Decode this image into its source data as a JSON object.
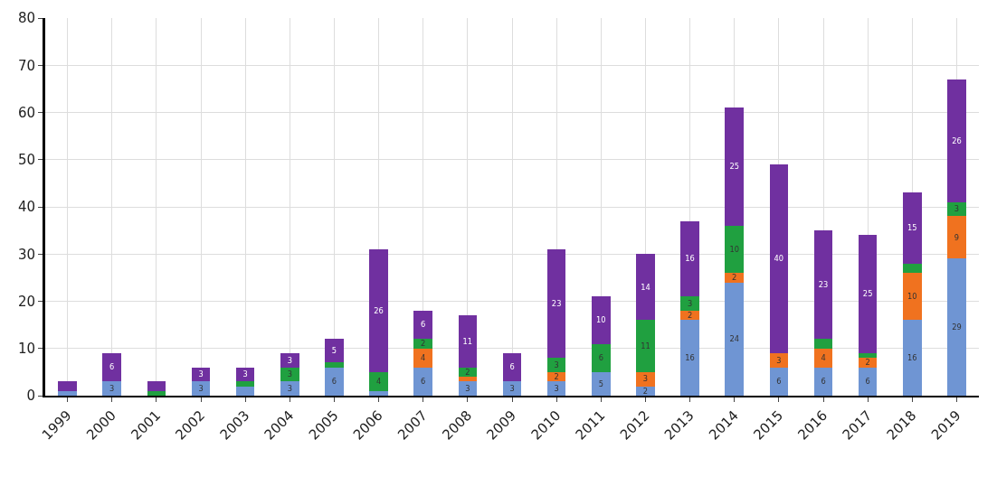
{
  "chart_data": {
    "type": "bar",
    "stacked": true,
    "categories": [
      "1999",
      "2000",
      "2001",
      "2002",
      "2003",
      "2004",
      "2005",
      "2006",
      "2007",
      "2008",
      "2009",
      "2010",
      "2011",
      "2012",
      "2013",
      "2014",
      "2015",
      "2016",
      "2017",
      "2018",
      "2019"
    ],
    "series": [
      {
        "color": "#6f95d3",
        "values": [
          1,
          3,
          0,
          3,
          2,
          3,
          6,
          1,
          6,
          3,
          3,
          3,
          5,
          2,
          16,
          24,
          6,
          6,
          6,
          16,
          29
        ],
        "value_labels": [
          null,
          "3",
          null,
          "3",
          null,
          "3",
          "6",
          null,
          "6",
          "3",
          "3",
          "3",
          "5",
          "2",
          "16",
          "24",
          "6",
          "6",
          "6",
          "16",
          "29"
        ]
      },
      {
        "color": "#f0721f",
        "values": [
          0,
          0,
          0,
          0,
          0,
          0,
          0,
          0,
          4,
          1,
          0,
          2,
          0,
          3,
          2,
          2,
          3,
          4,
          2,
          10,
          9
        ],
        "value_labels": [
          null,
          null,
          null,
          null,
          null,
          null,
          null,
          null,
          "4",
          null,
          null,
          "2",
          null,
          "3",
          "2",
          "2",
          "3",
          "4",
          "2",
          "10",
          "9"
        ]
      },
      {
        "color": "#20a040",
        "values": [
          0,
          0,
          1,
          0,
          1,
          3,
          1,
          4,
          2,
          2,
          0,
          3,
          6,
          11,
          3,
          10,
          0,
          2,
          1,
          2,
          3
        ],
        "value_labels": [
          null,
          null,
          null,
          null,
          null,
          "3",
          null,
          "4",
          "2",
          "2",
          null,
          "3",
          "6",
          "11",
          "3",
          "10",
          null,
          null,
          null,
          null,
          "3"
        ]
      },
      {
        "color": "#7030a0",
        "values": [
          2,
          6,
          2,
          3,
          3,
          3,
          5,
          26,
          6,
          11,
          6,
          23,
          10,
          14,
          16,
          25,
          40,
          23,
          25,
          15,
          26
        ],
        "value_labels": [
          null,
          "6",
          null,
          "3",
          "3",
          "3",
          "5",
          "26",
          "6",
          "11",
          "6",
          "23",
          "10",
          "14",
          "16",
          "25",
          "40",
          "23",
          "25",
          "15",
          "26"
        ]
      }
    ],
    "ylim": [
      0,
      80
    ],
    "yticks": [
      0,
      10,
      20,
      30,
      40,
      50,
      60,
      70,
      80
    ],
    "grid": true
  }
}
